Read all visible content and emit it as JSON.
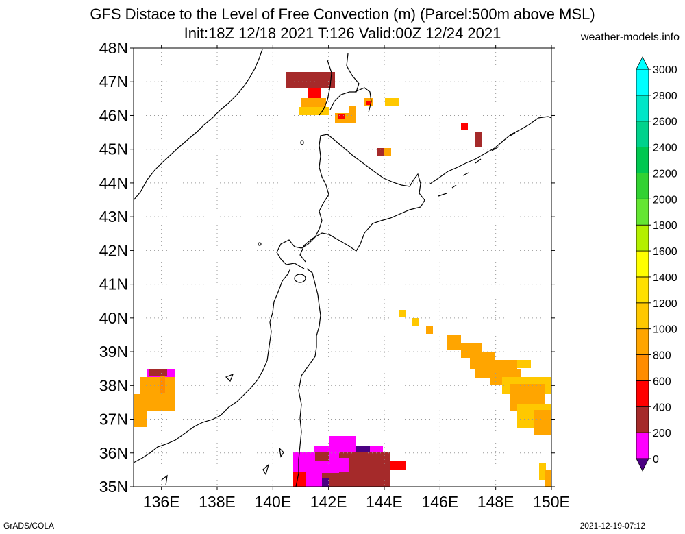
{
  "title_line1": "GFS Distace to the Level of Free Convection (m) (Parcel:500m above MSL)",
  "title_line2": "Init:18Z 12/18 2021 T:126 Valid:00Z 12/24 2021",
  "credit": "weather-models.info",
  "footer_left": "GrADS/COLA",
  "footer_right": "2021-12-19-07:12",
  "lat_labels": [
    "48N",
    "47N",
    "46N",
    "45N",
    "44N",
    "43N",
    "42N",
    "41N",
    "40N",
    "39N",
    "38N",
    "37N",
    "36N",
    "35N"
  ],
  "lon_labels": [
    "136E",
    "138E",
    "140E",
    "142E",
    "144E",
    "146E",
    "148E",
    "150E"
  ],
  "colorbar": {
    "levels": [
      "0",
      "200",
      "400",
      "600",
      "800",
      "1000",
      "1200",
      "1400",
      "1600",
      "1800",
      "2000",
      "2200",
      "2400",
      "2600",
      "2800",
      "3000"
    ],
    "colors": [
      "#4b0082",
      "#ff00ff",
      "#a52a2a",
      "#ff0000",
      "#ff8c00",
      "#ffa500",
      "#ffc800",
      "#ffe000",
      "#ffff00",
      "#b4f000",
      "#64e632",
      "#32d232",
      "#00c850",
      "#00d28c",
      "#00e6c8",
      "#00ffff"
    ]
  },
  "colors": {
    "coast": "#000000",
    "grid": "#9a9a9a"
  }
}
